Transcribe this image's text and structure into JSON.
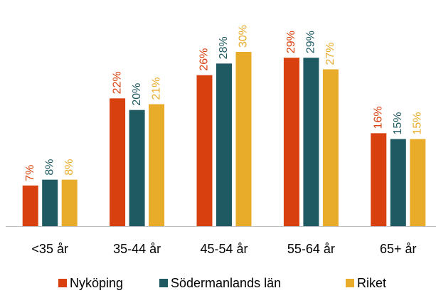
{
  "chart_data": {
    "type": "bar",
    "categories": [
      "<35 år",
      "35-44 år",
      "45-54 år",
      "55-64 år",
      "65+ år"
    ],
    "series": [
      {
        "name": "Nyköping",
        "color": "#d9400f",
        "values": [
          7,
          22,
          26,
          29,
          16
        ],
        "value_labels": [
          "7%",
          "22%",
          "26%",
          "29%",
          "16%"
        ]
      },
      {
        "name": "Södermanlands län",
        "color": "#1f5a63",
        "values": [
          8,
          20,
          28,
          29,
          15
        ],
        "value_labels": [
          "8%",
          "20%",
          "28%",
          "29%",
          "15%"
        ]
      },
      {
        "name": "Riket",
        "color": "#e8ab2a",
        "values": [
          8,
          21,
          30,
          27,
          15
        ],
        "value_labels": [
          "8%",
          "21%",
          "30%",
          "27%",
          "15%"
        ]
      }
    ],
    "legend": "bottom"
  }
}
